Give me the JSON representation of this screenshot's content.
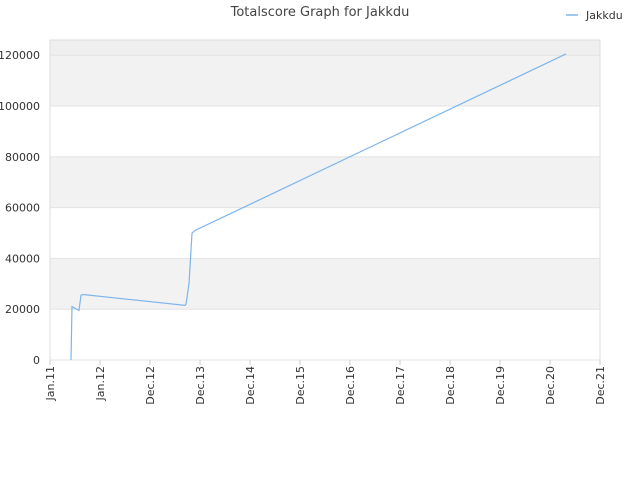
{
  "chart_data": {
    "type": "line",
    "title": "Totalscore Graph for Jakkdu",
    "xlim": [
      0,
      11
    ],
    "xticks": [
      {
        "value": 0,
        "label": "Jan.11"
      },
      {
        "value": 1,
        "label": "Jan.12"
      },
      {
        "value": 2,
        "label": "Dec.12"
      },
      {
        "value": 3,
        "label": "Dec.13"
      },
      {
        "value": 4,
        "label": "Dec.14"
      },
      {
        "value": 5,
        "label": "Dec.15"
      },
      {
        "value": 6,
        "label": "Dec.16"
      },
      {
        "value": 7,
        "label": "Dec.17"
      },
      {
        "value": 8,
        "label": "Dec.18"
      },
      {
        "value": 9,
        "label": "Dec.19"
      },
      {
        "value": 10,
        "label": "Dec.20"
      },
      {
        "value": 11,
        "label": "Dec.21"
      }
    ],
    "ylim": [
      0,
      126000
    ],
    "yticks": [
      0,
      20000,
      40000,
      60000,
      80000,
      100000,
      120000
    ],
    "grid": true,
    "legend": "top-right",
    "series": [
      {
        "name": "Jakkdu",
        "color": "#7cb5ec",
        "x": [
          0.42,
          0.44,
          0.58,
          0.62,
          0.66,
          2.7,
          2.72,
          2.78,
          2.84,
          2.9,
          10.32
        ],
        "values": [
          0,
          21000,
          19500,
          25500,
          25800,
          21500,
          22000,
          30000,
          50000,
          51000,
          120500
        ]
      }
    ]
  }
}
